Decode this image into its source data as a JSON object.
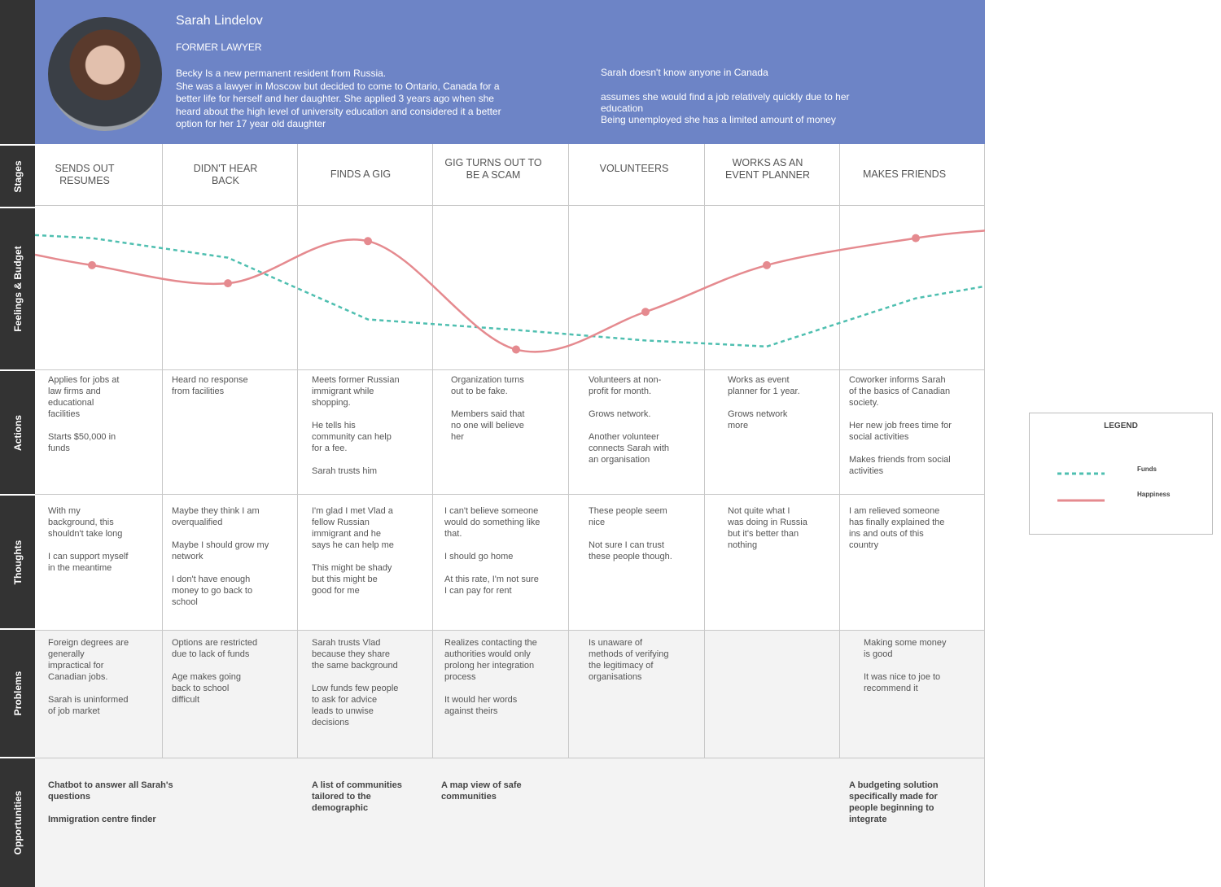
{
  "persona": {
    "name": "Sarah Lindelov",
    "role": "FORMER LAWYER",
    "bio": "Becky Is a new permanent resident from Russia.\nShe was a lawyer in Moscow but decided to come to Ontario, Canada for a better life for herself and her daughter. She applied 3 years ago when she heard about the high level of university education and considered it a better option for her 17 year old daughter",
    "note_1": "Sarah doesn't know anyone in Canada",
    "note_2": "assumes she would find a job relatively quickly due to her education",
    "note_3": "Being unemployed she has a limited amount of money"
  },
  "row_labels": {
    "stages": "Stages",
    "feelings": "Feelings & Budget",
    "actions": "Actions",
    "thoughts": "Thoughts",
    "problems": "Problems",
    "opportunities": "Opportunities"
  },
  "stages": [
    "SENDS OUT\nRESUMES",
    "DIDN'T HEAR\nBACK",
    "FINDS A GIG",
    "GIG TURNS OUT TO\nBE A SCAM",
    "VOLUNTEERS",
    "WORKS AS AN\nEVENT PLANNER",
    "MAKES FRIENDS"
  ],
  "actions": [
    "Applies for jobs at\nlaw firms and\neducational\nfacilities\n\nStarts $50,000 in\nfunds",
    "Heard no response\nfrom facilities",
    "Meets former Russian\nimmigrant while\nshopping.\n\nHe tells his\ncommunity can help\nfor a fee.\n\nSarah trusts him",
    "Organization turns\nout to be fake.\n\nMembers said that\nno one will believe\nher",
    "Volunteers at non-\nprofit for month.\n\nGrows network.\n\nAnother volunteer\nconnects Sarah with\nan organisation",
    "Works as event\nplanner for 1 year.\n\nGrows network\nmore",
    "Coworker informs Sarah\nof the basics of Canadian\nsociety.\n\nHer new job frees time for\nsocial activities\n\nMakes friends from social\nactivities"
  ],
  "thoughts": [
    "With my\nbackground, this\nshouldn't take long\n\nI can support myself\nin the meantime",
    "Maybe they think I am\noverqualified\n\nMaybe I should grow my\nnetwork\n\nI don't have enough\nmoney to go back to\nschool",
    "I'm glad I met Vlad a\nfellow Russian\nimmigrant and he\nsays he can help me\n\nThis might be shady\nbut this might be\ngood for me",
    "I can't believe someone\nwould do something like\nthat.\n\nI should go home\n\nAt this rate, I'm not sure\nI can pay for rent",
    "These people seem\nnice\n\nNot sure I can trust\nthese people though.",
    "Not quite what I\nwas doing in Russia\nbut it's better than\nnothing",
    "I am relieved someone\nhas finally explained the\nins and outs of this\ncountry"
  ],
  "problems": [
    "Foreign degrees are\ngenerally\nimpractical for\nCanadian jobs.\n\nSarah is uninformed\nof job market",
    "Options are restricted\ndue to lack of funds\n\nAge makes going\nback to school\ndifficult",
    "Sarah trusts Vlad\nbecause they share\nthe same background\n\nLow funds few people\nto ask for advice\nleads to unwise\ndecisions",
    "Realizes contacting the\nauthorities would only\nprolong her integration\nprocess\n\nIt would her words\nagainst theirs",
    "Is unaware of\nmethods of verifying\nthe legitimacy of\norganisations",
    "",
    "Making some money\nis good\n\nIt was nice to joe to\nrecommend it"
  ],
  "opportunities": [
    "Chatbot to answer all Sarah's\nquestions\n\nImmigration centre finder",
    "A list of communities\ntailored to the\ndemographic",
    "A map view of safe\ncommunities",
    "A budgeting solution\nspecifically made for\npeople beginning to\nintegrate"
  ],
  "legend": {
    "title": "LEGEND",
    "funds": "Funds",
    "happiness": "Happiness"
  },
  "colors": {
    "header": "#6d84c6",
    "side": "#333333",
    "funds": "#4fbfb0",
    "happiness": "#e58a8f"
  },
  "chart_data": {
    "type": "line",
    "stages": 7,
    "series": [
      {
        "name": "Happiness",
        "values": [
          0.66,
          0.54,
          0.82,
          0.1,
          0.35,
          0.66,
          0.84
        ]
      },
      {
        "name": "Funds",
        "values": [
          0.84,
          0.71,
          0.3,
          0.23,
          0.16,
          0.12,
          0.44
        ]
      }
    ]
  }
}
